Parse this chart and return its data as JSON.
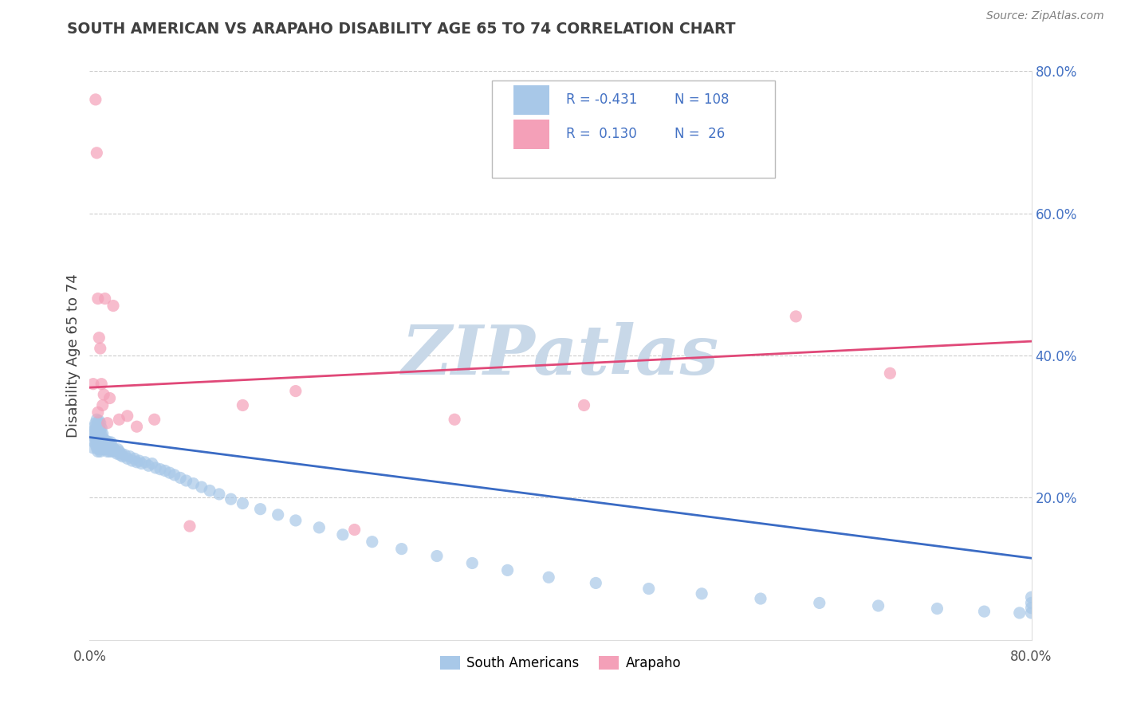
{
  "title": "SOUTH AMERICAN VS ARAPAHO DISABILITY AGE 65 TO 74 CORRELATION CHART",
  "source_text": "Source: ZipAtlas.com",
  "ylabel": "Disability Age 65 to 74",
  "xlim": [
    0.0,
    0.8
  ],
  "ylim": [
    0.0,
    0.8
  ],
  "blue_color": "#A8C8E8",
  "pink_color": "#F4A0B8",
  "blue_line_color": "#3A6BC4",
  "pink_line_color": "#E04878",
  "title_color": "#404040",
  "source_color": "#808080",
  "watermark_text": "ZIPatlas",
  "watermark_color": "#C8D8E8",
  "legend_R1": "-0.431",
  "legend_N1": "108",
  "legend_R2": "0.130",
  "legend_N2": "26",
  "legend_label1": "South Americans",
  "legend_label2": "Arapaho",
  "blue_line_x0": 0.0,
  "blue_line_y0": 0.285,
  "blue_line_x1": 0.8,
  "blue_line_y1": 0.115,
  "pink_line_x0": 0.0,
  "pink_line_x1": 0.8,
  "pink_line_y0": 0.355,
  "pink_line_y1": 0.42,
  "blue_x": [
    0.002,
    0.003,
    0.003,
    0.004,
    0.004,
    0.004,
    0.005,
    0.005,
    0.005,
    0.005,
    0.006,
    0.006,
    0.006,
    0.006,
    0.006,
    0.007,
    0.007,
    0.007,
    0.007,
    0.007,
    0.008,
    0.008,
    0.008,
    0.008,
    0.008,
    0.009,
    0.009,
    0.009,
    0.009,
    0.009,
    0.01,
    0.01,
    0.01,
    0.01,
    0.011,
    0.011,
    0.011,
    0.012,
    0.012,
    0.013,
    0.013,
    0.014,
    0.014,
    0.015,
    0.015,
    0.016,
    0.016,
    0.017,
    0.018,
    0.018,
    0.019,
    0.02,
    0.021,
    0.022,
    0.023,
    0.024,
    0.025,
    0.026,
    0.027,
    0.028,
    0.03,
    0.032,
    0.034,
    0.036,
    0.038,
    0.04,
    0.042,
    0.044,
    0.047,
    0.05,
    0.053,
    0.056,
    0.06,
    0.064,
    0.068,
    0.072,
    0.077,
    0.082,
    0.088,
    0.095,
    0.102,
    0.11,
    0.12,
    0.13,
    0.145,
    0.16,
    0.175,
    0.195,
    0.215,
    0.24,
    0.265,
    0.295,
    0.325,
    0.355,
    0.39,
    0.43,
    0.475,
    0.52,
    0.57,
    0.62,
    0.67,
    0.72,
    0.76,
    0.79,
    0.8,
    0.8,
    0.8,
    0.8
  ],
  "blue_y": [
    0.28,
    0.29,
    0.27,
    0.285,
    0.295,
    0.3,
    0.275,
    0.285,
    0.295,
    0.305,
    0.27,
    0.28,
    0.29,
    0.3,
    0.31,
    0.265,
    0.275,
    0.285,
    0.295,
    0.305,
    0.268,
    0.278,
    0.288,
    0.298,
    0.308,
    0.265,
    0.275,
    0.285,
    0.295,
    0.305,
    0.268,
    0.278,
    0.288,
    0.298,
    0.27,
    0.28,
    0.29,
    0.272,
    0.282,
    0.268,
    0.278,
    0.27,
    0.28,
    0.265,
    0.275,
    0.268,
    0.278,
    0.265,
    0.268,
    0.278,
    0.265,
    0.27,
    0.268,
    0.265,
    0.262,
    0.268,
    0.265,
    0.26,
    0.262,
    0.258,
    0.26,
    0.255,
    0.258,
    0.252,
    0.255,
    0.25,
    0.252,
    0.248,
    0.25,
    0.245,
    0.248,
    0.242,
    0.24,
    0.238,
    0.235,
    0.232,
    0.228,
    0.224,
    0.22,
    0.215,
    0.21,
    0.205,
    0.198,
    0.192,
    0.184,
    0.176,
    0.168,
    0.158,
    0.148,
    0.138,
    0.128,
    0.118,
    0.108,
    0.098,
    0.088,
    0.08,
    0.072,
    0.065,
    0.058,
    0.052,
    0.048,
    0.044,
    0.04,
    0.038,
    0.038,
    0.045,
    0.052,
    0.06
  ],
  "pink_x": [
    0.003,
    0.005,
    0.006,
    0.007,
    0.007,
    0.008,
    0.009,
    0.01,
    0.011,
    0.012,
    0.013,
    0.015,
    0.017,
    0.02,
    0.025,
    0.032,
    0.04,
    0.055,
    0.085,
    0.13,
    0.175,
    0.225,
    0.31,
    0.42,
    0.6,
    0.68
  ],
  "pink_y": [
    0.36,
    0.76,
    0.685,
    0.48,
    0.32,
    0.425,
    0.41,
    0.36,
    0.33,
    0.345,
    0.48,
    0.305,
    0.34,
    0.47,
    0.31,
    0.315,
    0.3,
    0.31,
    0.16,
    0.33,
    0.35,
    0.155,
    0.31,
    0.33,
    0.455,
    0.375
  ]
}
